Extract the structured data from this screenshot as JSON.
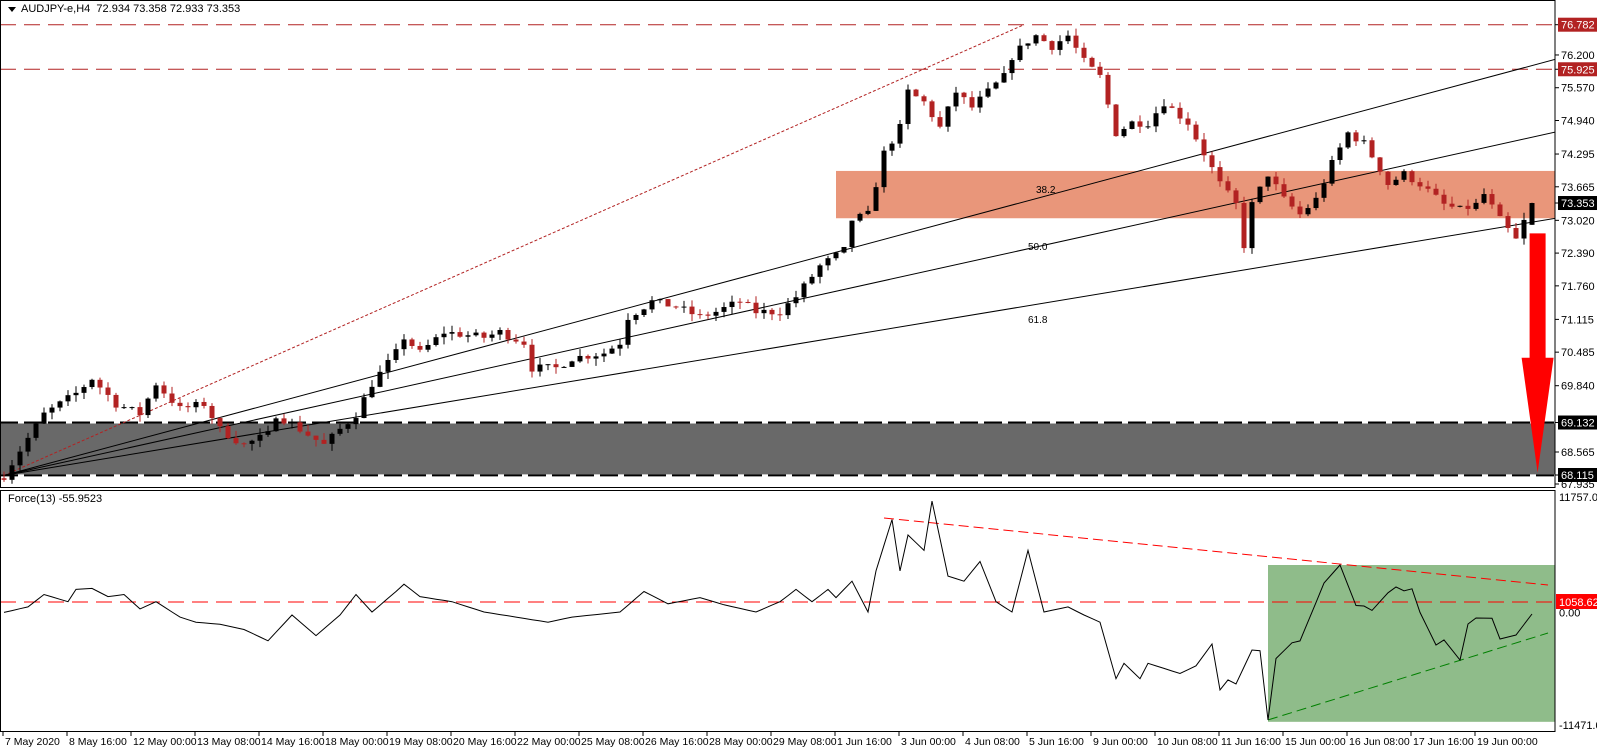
{
  "header": {
    "symbol": "AUDJPY-e,H4",
    "open": "72.934",
    "high": "73.358",
    "low": "72.933",
    "close": "73.353"
  },
  "indicator": {
    "title": "Force(13) -55.9523"
  },
  "colors": {
    "bull": "#000000",
    "bear": "#b22222",
    "level_red": "#b22222",
    "zone": "#e9967a",
    "support": "#696969",
    "arrow": "#ff0000",
    "force_zone": "#8fbc8a",
    "force_red": "#ff0000",
    "force_green": "#008000"
  },
  "chart_data": [
    {
      "type": "candlestick",
      "title": "AUDJPY-e,H4",
      "ylim": [
        67.935,
        76.782
      ],
      "bar_count": 192,
      "last_bar": {
        "open": 72.934,
        "high": 73.358,
        "low": 72.933,
        "close": 73.353
      },
      "close_keypoints": [
        [
          0,
          68.11
        ],
        [
          2,
          68.6
        ],
        [
          5,
          69.29
        ],
        [
          9,
          69.69
        ],
        [
          11,
          69.98
        ],
        [
          14,
          69.49
        ],
        [
          17,
          69.3
        ],
        [
          19,
          69.88
        ],
        [
          22,
          69.39
        ],
        [
          25,
          69.49
        ],
        [
          27,
          69.0
        ],
        [
          30,
          68.7
        ],
        [
          33,
          68.9
        ],
        [
          34,
          69.29
        ],
        [
          37,
          69.0
        ],
        [
          40,
          68.7
        ],
        [
          42,
          69.0
        ],
        [
          44,
          69.29
        ],
        [
          46,
          69.88
        ],
        [
          49,
          70.47
        ],
        [
          50,
          70.77
        ],
        [
          52,
          70.47
        ],
        [
          55,
          70.87
        ],
        [
          60,
          70.77
        ],
        [
          62,
          70.87
        ],
        [
          65,
          70.67
        ],
        [
          66,
          70.18
        ],
        [
          69,
          70.18
        ],
        [
          71,
          70.37
        ],
        [
          75,
          70.47
        ],
        [
          77,
          70.67
        ],
        [
          78,
          71.16
        ],
        [
          81,
          71.46
        ],
        [
          84,
          71.36
        ],
        [
          87,
          71.16
        ],
        [
          89,
          71.26
        ],
        [
          92,
          71.46
        ],
        [
          94,
          71.26
        ],
        [
          97,
          71.26
        ],
        [
          99,
          71.55
        ],
        [
          102,
          72.14
        ],
        [
          105,
          72.44
        ],
        [
          106,
          73.03
        ],
        [
          108,
          73.13
        ],
        [
          109,
          73.72
        ],
        [
          110,
          74.31
        ],
        [
          112,
          74.8
        ],
        [
          113,
          75.49
        ],
        [
          115,
          75.29
        ],
        [
          117,
          74.8
        ],
        [
          119,
          75.49
        ],
        [
          121,
          75.19
        ],
        [
          123,
          75.49
        ],
        [
          125,
          75.78
        ],
        [
          126,
          76.17
        ],
        [
          128,
          76.47
        ],
        [
          129,
          76.57
        ],
        [
          131,
          76.37
        ],
        [
          133,
          76.57
        ],
        [
          135,
          76.07
        ],
        [
          137,
          75.78
        ],
        [
          139,
          74.7
        ],
        [
          141,
          74.9
        ],
        [
          143,
          74.9
        ],
        [
          145,
          75.29
        ],
        [
          148,
          74.9
        ],
        [
          150,
          74.31
        ],
        [
          152,
          73.72
        ],
        [
          154,
          73.32
        ],
        [
          155,
          72.54
        ],
        [
          156,
          73.32
        ],
        [
          158,
          73.91
        ],
        [
          160,
          73.42
        ],
        [
          162,
          73.13
        ],
        [
          164,
          73.42
        ],
        [
          166,
          74.11
        ],
        [
          168,
          74.7
        ],
        [
          170,
          74.5
        ],
        [
          172,
          74.01
        ],
        [
          173,
          73.72
        ],
        [
          175,
          73.91
        ],
        [
          177,
          73.72
        ],
        [
          180,
          73.32
        ],
        [
          182,
          73.22
        ],
        [
          184,
          73.32
        ],
        [
          185,
          73.52
        ],
        [
          187,
          73.03
        ],
        [
          189,
          72.64
        ],
        [
          191,
          73.35
        ]
      ],
      "price_labels": [
        {
          "text": "76.782",
          "value": 76.782,
          "style": "red"
        },
        {
          "text": "76.200",
          "value": 76.2
        },
        {
          "text": "75.925",
          "value": 75.925,
          "style": "red"
        },
        {
          "text": "75.570",
          "value": 75.57
        },
        {
          "text": "74.940",
          "value": 74.94
        },
        {
          "text": "74.295",
          "value": 74.295
        },
        {
          "text": "73.665",
          "value": 73.665
        },
        {
          "text": "73.353",
          "value": 73.353,
          "style": "black"
        },
        {
          "text": "73.020",
          "value": 73.02
        },
        {
          "text": "72.390",
          "value": 72.39
        },
        {
          "text": "71.760",
          "value": 71.76
        },
        {
          "text": "71.115",
          "value": 71.115
        },
        {
          "text": "70.485",
          "value": 70.485
        },
        {
          "text": "69.840",
          "value": 69.84
        },
        {
          "text": "69.132",
          "value": 69.132,
          "style": "black"
        },
        {
          "text": "68.565",
          "value": 68.565
        },
        {
          "text": "68.115",
          "value": 68.115,
          "style": "black"
        },
        {
          "text": "67.935",
          "value": 67.935
        }
      ],
      "resistance_levels": [
        76.782,
        75.925
      ],
      "support_zone": [
        68.115,
        69.132
      ],
      "fib_zone": {
        "from_bar": 104,
        "top": 73.97,
        "bottom": 73.06
      },
      "fan": {
        "origin": [
          0,
          68.115
        ],
        "trend_line_end": [
          127.5,
          76.782
        ],
        "lines": [
          {
            "label": "38.2",
            "end": [
              194,
              76.12
            ],
            "label_at": [
              129,
              73.55
            ]
          },
          {
            "label": "50.0",
            "end": [
              194,
              74.72
            ],
            "label_at": [
              128,
              72.45
            ]
          },
          {
            "label": "61.8",
            "end": [
              194,
              73.06
            ],
            "label_at": [
              128,
              71.05
            ]
          }
        ]
      },
      "arrow": {
        "bar": 191.7,
        "from": 72.77,
        "to": 68.17,
        "direction": "down"
      }
    },
    {
      "type": "line",
      "title": "Force(13) -55.9523",
      "ylim": [
        -11471.0,
        11757.04
      ],
      "axis_labels": [
        {
          "text": "11757.04",
          "value": 11757.04
        },
        {
          "text": "1058.621",
          "value": 1058.621,
          "style": "red"
        },
        {
          "text": "0.00",
          "value": 0
        },
        {
          "text": "-11471.0",
          "value": -11471.0
        }
      ],
      "level": 1058.621,
      "series_keypoints": [
        [
          0,
          0
        ],
        [
          3,
          560
        ],
        [
          5,
          1820
        ],
        [
          8,
          1090
        ],
        [
          9,
          2340
        ],
        [
          11,
          2450
        ],
        [
          13,
          1610
        ],
        [
          15,
          1820
        ],
        [
          17,
          360
        ],
        [
          19,
          1090
        ],
        [
          22,
          -480
        ],
        [
          24,
          -1000
        ],
        [
          27,
          -1210
        ],
        [
          30,
          -1740
        ],
        [
          33,
          -2890
        ],
        [
          36,
          -270
        ],
        [
          39,
          -2360
        ],
        [
          42,
          -270
        ],
        [
          44,
          1820
        ],
        [
          46,
          40
        ],
        [
          49,
          2130
        ],
        [
          50,
          2870
        ],
        [
          52,
          1610
        ],
        [
          56,
          1090
        ],
        [
          60,
          40
        ],
        [
          64,
          -480
        ],
        [
          68,
          -1000
        ],
        [
          71,
          -480
        ],
        [
          77,
          40
        ],
        [
          80,
          2130
        ],
        [
          83,
          880
        ],
        [
          87,
          1510
        ],
        [
          90,
          770
        ],
        [
          94,
          40
        ],
        [
          97,
          1090
        ],
        [
          99,
          2340
        ],
        [
          101,
          1090
        ],
        [
          103,
          2340
        ],
        [
          104,
          1510
        ],
        [
          106,
          3180
        ],
        [
          108,
          40
        ],
        [
          109,
          4230
        ],
        [
          111,
          9460
        ],
        [
          112,
          4230
        ],
        [
          113,
          7890
        ],
        [
          115,
          6320
        ],
        [
          116,
          11340
        ],
        [
          118,
          3700
        ],
        [
          120,
          3180
        ],
        [
          122,
          5190
        ],
        [
          124,
          1090
        ],
        [
          126,
          40
        ],
        [
          128,
          6320
        ],
        [
          130,
          40
        ],
        [
          133,
          560
        ],
        [
          135,
          -270
        ],
        [
          137,
          -1000
        ],
        [
          139,
          -6760
        ],
        [
          140,
          -5190
        ],
        [
          142,
          -6760
        ],
        [
          143,
          -5190
        ],
        [
          147,
          -6230
        ],
        [
          149,
          -5440
        ],
        [
          151,
          -3220
        ],
        [
          152,
          -7900
        ],
        [
          153,
          -6880
        ],
        [
          154,
          -7300
        ],
        [
          155,
          -5560
        ],
        [
          156,
          -3830
        ],
        [
          157,
          -3900
        ],
        [
          158,
          -10960
        ],
        [
          159,
          -4700
        ],
        [
          161,
          -3100
        ],
        [
          162,
          -2900
        ],
        [
          164,
          1000
        ],
        [
          165,
          3000
        ],
        [
          167,
          4830
        ],
        [
          169,
          700
        ],
        [
          170,
          650
        ],
        [
          171,
          200
        ],
        [
          173,
          2000
        ],
        [
          174,
          2590
        ],
        [
          175,
          2200
        ],
        [
          176,
          2400
        ],
        [
          177,
          0
        ],
        [
          179,
          -3320
        ],
        [
          180,
          -2800
        ],
        [
          182,
          -4850
        ],
        [
          183,
          -1180
        ],
        [
          184,
          -570
        ],
        [
          186,
          -600
        ],
        [
          187,
          -2710
        ],
        [
          189,
          -2300
        ],
        [
          191,
          -160
        ]
      ],
      "resistance_line": {
        "from": [
          110,
          9620
        ],
        "to": [
          193,
          2790
        ]
      },
      "support_line": {
        "from": [
          158,
          -10960
        ],
        "to": [
          193,
          -2100
        ]
      },
      "zone": {
        "from_bar": 158,
        "top": 4830,
        "bottom": -11150
      }
    }
  ],
  "x_axis": {
    "labels": [
      "7 May 2020",
      "8 May 16:00",
      "12 May 00:00",
      "13 May 08:00",
      "14 May 16:00",
      "18 May 00:00",
      "19 May 08:00",
      "20 May 16:00",
      "22 May 00:00",
      "25 May 08:00",
      "26 May 16:00",
      "28 May 00:00",
      "29 May 08:00",
      "1 Jun 16:00",
      "3 Jun 00:00",
      "4 Jun 08:00",
      "5 Jun 16:00",
      "9 Jun 00:00",
      "10 Jun 08:00",
      "11 Jun 16:00",
      "15 Jun 00:00",
      "16 Jun 08:00",
      "17 Jun 16:00",
      "19 Jun 00:00"
    ]
  }
}
